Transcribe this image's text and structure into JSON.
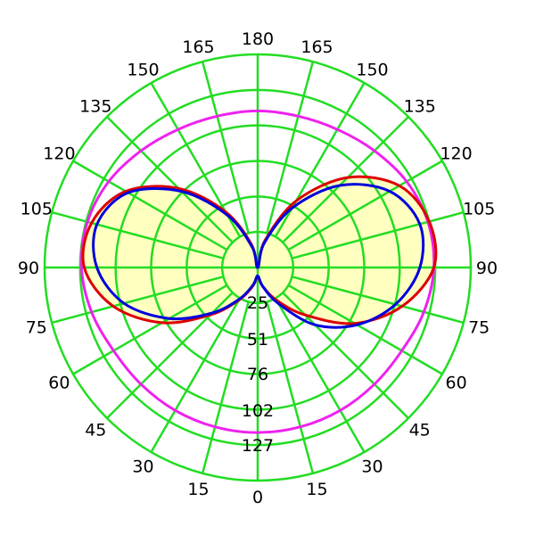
{
  "chart_data": {
    "type": "polar",
    "title": "",
    "angle_unit": "degrees",
    "angle_labels_left": [
      "0",
      "15",
      "30",
      "45",
      "60",
      "75",
      "90",
      "105",
      "120",
      "135",
      "150",
      "165",
      "180"
    ],
    "angle_labels_right": [
      "15",
      "30",
      "45",
      "60",
      "75",
      "90",
      "105",
      "120",
      "135",
      "150",
      "165"
    ],
    "angle_label_values_left": [
      0,
      15,
      30,
      45,
      60,
      75,
      90,
      105,
      120,
      135,
      150,
      165,
      180
    ],
    "angle_label_values_right": [
      15,
      30,
      45,
      60,
      75,
      90,
      105,
      120,
      135,
      150,
      165
    ],
    "radial_labels": [
      "25",
      "51",
      "76",
      "102",
      "127"
    ],
    "radial_values": [
      25,
      51,
      76,
      102,
      127
    ],
    "r_max": 152.4,
    "angular_grid_step_deg": 15,
    "radial_rings": [
      25.4,
      50.8,
      76.2,
      101.6,
      127.0,
      152.4
    ],
    "grid": true,
    "colors": {
      "grid": "#22dd22",
      "fill": "#ffffc0",
      "series_magenta": "#ee22ee",
      "series_red": "#dd0000",
      "series_blue": "#0000dd"
    },
    "series": [
      {
        "color": "magenta",
        "points": [
          [
            0,
            118
          ],
          [
            15,
            118
          ],
          [
            30,
            118
          ],
          [
            45,
            118
          ],
          [
            60,
            119
          ],
          [
            75,
            123
          ],
          [
            90,
            126
          ],
          [
            105,
            126
          ],
          [
            120,
            123
          ],
          [
            135,
            118
          ],
          [
            150,
            114
          ],
          [
            165,
            112
          ],
          [
            180,
            112
          ]
        ],
        "symmetric": true
      },
      {
        "color": "red",
        "fill": true,
        "left": [
          [
            0,
            7
          ],
          [
            15,
            14
          ],
          [
            30,
            27
          ],
          [
            45,
            48
          ],
          [
            60,
            79
          ],
          [
            75,
            107
          ],
          [
            90,
            124
          ],
          [
            105,
            123
          ],
          [
            120,
            109
          ],
          [
            135,
            80
          ],
          [
            150,
            46
          ],
          [
            165,
            17
          ],
          [
            180,
            0
          ]
        ],
        "right": [
          [
            0,
            7
          ],
          [
            15,
            14
          ],
          [
            30,
            27
          ],
          [
            45,
            48
          ],
          [
            60,
            80
          ],
          [
            75,
            107
          ],
          [
            90,
            126
          ],
          [
            105,
            127
          ],
          [
            120,
            117
          ],
          [
            135,
            91
          ],
          [
            150,
            55
          ],
          [
            165,
            20
          ],
          [
            180,
            0
          ]
        ]
      },
      {
        "color": "blue",
        "left": [
          [
            0,
            6
          ],
          [
            15,
            13
          ],
          [
            30,
            26
          ],
          [
            45,
            46
          ],
          [
            60,
            73
          ],
          [
            75,
            99
          ],
          [
            90,
            115
          ],
          [
            105,
            119
          ],
          [
            120,
            107
          ],
          [
            135,
            77
          ],
          [
            150,
            43
          ],
          [
            165,
            15
          ],
          [
            180,
            0
          ]
        ],
        "right": [
          [
            0,
            6
          ],
          [
            15,
            14
          ],
          [
            30,
            30
          ],
          [
            45,
            58
          ],
          [
            60,
            82
          ],
          [
            75,
            102
          ],
          [
            90,
            116
          ],
          [
            105,
            120
          ],
          [
            120,
            109
          ],
          [
            135,
            83
          ],
          [
            150,
            49
          ],
          [
            165,
            18
          ],
          [
            180,
            0
          ]
        ]
      }
    ]
  }
}
